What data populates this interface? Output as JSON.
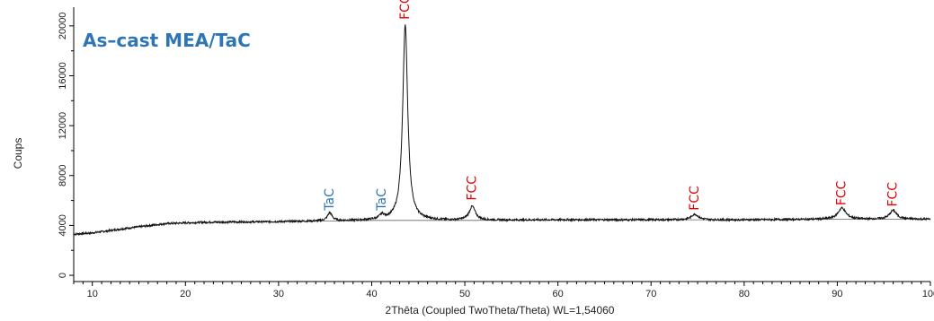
{
  "chart_data": {
    "type": "line",
    "title": "As–cast MEA/TaC",
    "xlabel": "2Thêta (Coupled TwoTheta/Theta) WL=1,54060",
    "ylabel": "Coups",
    "xlim": [
      8,
      100
    ],
    "ylim": [
      -500,
      21500
    ],
    "x_ticks": [
      10,
      20,
      30,
      40,
      50,
      60,
      70,
      80,
      90,
      100
    ],
    "y_ticks": [
      0,
      4000,
      8000,
      12000,
      16000,
      20000
    ],
    "grid": false,
    "legend": "none",
    "colors": {
      "pattern": "#111111",
      "background_line": "#666666",
      "tac": "#2e75b6",
      "fcc": "#e00000",
      "title": "#2e75b6"
    },
    "series": [
      {
        "background": [
          [
            8,
            3300
          ],
          [
            10,
            3400
          ],
          [
            14,
            3800
          ],
          [
            18,
            4150
          ],
          [
            22,
            4250
          ],
          [
            30,
            4300
          ],
          [
            40,
            4400
          ],
          [
            50,
            4400
          ],
          [
            60,
            4450
          ],
          [
            70,
            4450
          ],
          [
            80,
            4450
          ],
          [
            90,
            4500
          ],
          [
            100,
            4500
          ]
        ],
        "peaks": [
          {
            "x": 35.5,
            "height": 650,
            "width": 0.3
          },
          {
            "x": 41.1,
            "height": 350,
            "width": 0.3
          },
          {
            "x": 43.6,
            "height": 15700,
            "width": 0.32
          },
          {
            "x": 50.8,
            "height": 1100,
            "width": 0.4
          },
          {
            "x": 74.7,
            "height": 450,
            "width": 0.45
          },
          {
            "x": 90.5,
            "height": 900,
            "width": 0.5
          },
          {
            "x": 96.0,
            "height": 700,
            "width": 0.45
          }
        ]
      }
    ],
    "annotations": [
      {
        "text": "TaC",
        "x": 35.5,
        "y": 5200,
        "phase": "tac"
      },
      {
        "text": "TaC",
        "x": 41.1,
        "y": 5200,
        "phase": "tac"
      },
      {
        "text": "FCC",
        "x": 43.6,
        "y": 20500,
        "phase": "fcc"
      },
      {
        "text": "FCC",
        "x": 50.8,
        "y": 6000,
        "phase": "fcc"
      },
      {
        "text": "FCC",
        "x": 74.7,
        "y": 5200,
        "phase": "fcc"
      },
      {
        "text": "FCC",
        "x": 90.5,
        "y": 5600,
        "phase": "fcc"
      },
      {
        "text": "FCC",
        "x": 96.0,
        "y": 5500,
        "phase": "fcc"
      }
    ]
  }
}
